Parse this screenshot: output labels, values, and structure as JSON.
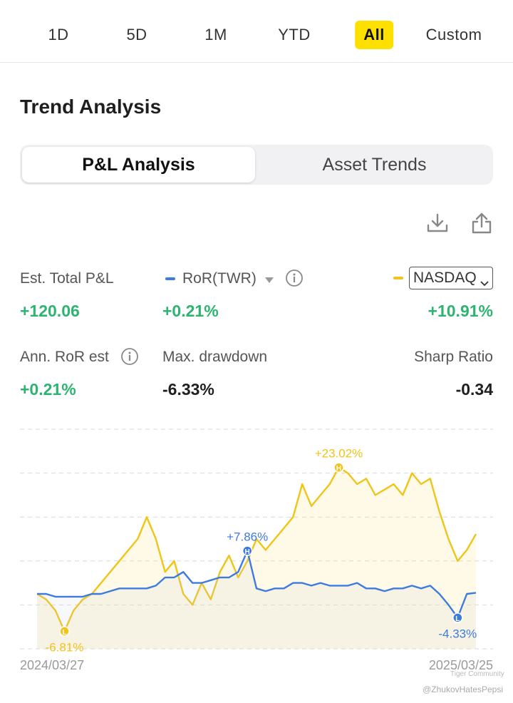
{
  "range_tabs": [
    {
      "label": "1D",
      "active": false
    },
    {
      "label": "5D",
      "active": false
    },
    {
      "label": "1M",
      "active": false
    },
    {
      "label": "YTD",
      "active": false
    },
    {
      "label": "All",
      "active": true
    },
    {
      "label": "Custom",
      "active": false
    }
  ],
  "section_title": "Trend Analysis",
  "segments": {
    "active": "P&L Analysis",
    "inactive": "Asset Trends"
  },
  "icons": {
    "download": "download-icon",
    "share": "share-icon",
    "info": "info-icon",
    "dropdown": "triangle-down-icon",
    "chevron": "chevron-down-icon"
  },
  "stats": {
    "est_total_pl": {
      "label": "Est. Total P&L",
      "value": "+120.06"
    },
    "ror": {
      "label": "RoR(TWR)",
      "value": "+0.21%"
    },
    "nasdaq": {
      "label": "NASDAQ",
      "value": "+10.91%"
    },
    "ann_ror": {
      "label": "Ann. RoR est",
      "value": "+0.21%"
    },
    "max_drawdown": {
      "label": "Max. drawdown",
      "value": "-6.33%"
    },
    "sharp_ratio": {
      "label": "Sharp Ratio",
      "value": "-0.34"
    }
  },
  "colors": {
    "accent_yellow": "#fde000",
    "ror_blue": "#3d7be0",
    "nasdaq_gold": "#f0c419",
    "positive_green": "#2db470"
  },
  "chart_data": {
    "type": "line",
    "x_start": "2024/03/27",
    "x_end": "2025/03/25",
    "annotations": [
      {
        "series": "NASDAQ",
        "marker": "L",
        "text": "-6.81%"
      },
      {
        "series": "NASDAQ",
        "marker": "H",
        "text": "+23.02%"
      },
      {
        "series": "RoR(TWR)",
        "marker": "H",
        "text": "+7.86%"
      },
      {
        "series": "RoR(TWR)",
        "marker": "L",
        "text": "-4.33%"
      }
    ],
    "series": [
      {
        "name": "NASDAQ",
        "values": [
          0,
          -1,
          -3,
          -6.81,
          -3,
          -1,
          0,
          2,
          4,
          6,
          8,
          10,
          14,
          10,
          4,
          6,
          0,
          -2,
          2,
          -1,
          4,
          7,
          3,
          6,
          10,
          8,
          10,
          12,
          14,
          20,
          16,
          18,
          20,
          23.02,
          22,
          20,
          21,
          18,
          19,
          20,
          18,
          22,
          20,
          21,
          15,
          10,
          6,
          8,
          10.91
        ]
      },
      {
        "name": "RoR(TWR)",
        "values": [
          0,
          0,
          -0.5,
          -0.5,
          -0.5,
          -0.5,
          0,
          0,
          0.5,
          1,
          1,
          1,
          1,
          1.5,
          3,
          3,
          4,
          2,
          2,
          2.5,
          3,
          3,
          4,
          7.86,
          1,
          0.5,
          1,
          1,
          2,
          2,
          1.5,
          2,
          1.5,
          1.5,
          1.5,
          2,
          1,
          1,
          0.5,
          1,
          1,
          1.5,
          1,
          1.5,
          0,
          -2,
          -4.33,
          0,
          0.21
        ]
      }
    ],
    "ylim": [
      -10,
      30
    ],
    "grid": true
  },
  "watermark": {
    "brand": "Tiger Community",
    "user": "@ZhukovHatesPepsi"
  }
}
